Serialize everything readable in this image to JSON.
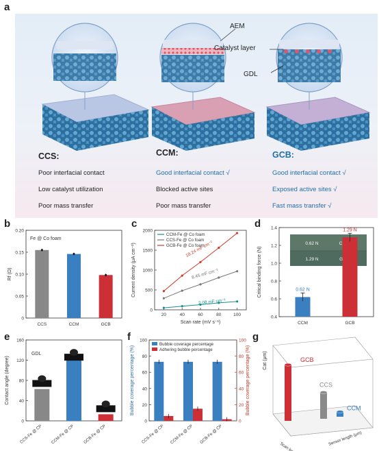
{
  "panel_labels": {
    "a": "a",
    "b": "b",
    "c": "c",
    "d": "d",
    "e": "e",
    "f": "f",
    "g": "g"
  },
  "panel_a": {
    "callouts": {
      "aem": "AEM",
      "catalyst": "Catalyst layer",
      "gdl": "GDL"
    },
    "columns": [
      {
        "title": "CCS:",
        "lines": [
          "Poor interfacial contact",
          "Low catalyst utilization",
          "Poor mass transfer"
        ]
      },
      {
        "title": "CCM:",
        "lines": [
          "Good interfacial contact  √",
          "Blocked active sites",
          "Poor mass transfer"
        ]
      },
      {
        "title": "GCB:",
        "lines": [
          "Good interfacial contact  √",
          "Exposed active sites  √",
          "Fast mass transfer  √"
        ]
      }
    ],
    "colors": {
      "blue_text": "#1f6fa8",
      "gdl": "#3a86b8",
      "catalyst": "#e0687a",
      "membrane": "#c9d6ea"
    }
  },
  "panel_b": {
    "annotation": "Fe @ Co foam",
    "chart_data": {
      "type": "bar",
      "categories": [
        "CCS",
        "CCM",
        "GCB"
      ],
      "values": [
        0.155,
        0.146,
        0.098
      ],
      "colors": [
        "#888888",
        "#3a7fc0",
        "#cc2f35"
      ],
      "ylabel": "Rf (Ω)",
      "ylim": [
        0,
        0.2
      ],
      "yticks": [
        "0",
        "0.05",
        "0.10",
        "0.15",
        "0.20"
      ]
    }
  },
  "panel_c": {
    "chart_data": {
      "type": "line",
      "x": [
        20,
        40,
        60,
        80,
        100
      ],
      "series": [
        {
          "name": "CCM-Fe @ Co foam",
          "values": [
            50,
            90,
            130,
            175,
            210
          ],
          "color": "#1a8f8a",
          "slope_label": "2.08 mF cm⁻²"
        },
        {
          "name": "CCS-Fe @ Co foam",
          "values": [
            290,
            480,
            640,
            810,
            970
          ],
          "color": "#777777",
          "slope_label": "8.45 mF cm⁻²"
        },
        {
          "name": "GCB-Fe @ Co foam",
          "values": [
            470,
            860,
            1200,
            1560,
            1930
          ],
          "color": "#cc3a2a",
          "slope_label": "18.24 mF cm⁻²"
        }
      ],
      "xlabel": "Scan rate (mV s⁻¹)",
      "ylabel": "Current density (μA cm⁻²)",
      "xlim": [
        10,
        110
      ],
      "ylim": [
        0,
        2000
      ],
      "xticks": [
        "20",
        "40",
        "60",
        "80",
        "100"
      ],
      "yticks": [
        "0",
        "500",
        "1000",
        "1500",
        "2000"
      ]
    }
  },
  "panel_d": {
    "inset": {
      "top_value": "0.62 N",
      "top_label": "CCM-Fe",
      "bottom_value": "1.29 N",
      "bottom_label": "GCB-Fe"
    },
    "chart_data": {
      "type": "bar",
      "categories": [
        "CCM",
        "GCB"
      ],
      "values": [
        0.62,
        1.29
      ],
      "data_labels": [
        "0.62 N",
        "1.29 N"
      ],
      "colors": [
        "#3a7fc0",
        "#cc2f35"
      ],
      "ylabel": "Critical binding force (N)",
      "ylim": [
        0.4,
        1.4
      ],
      "yticks": [
        "0.4",
        "0.6",
        "0.8",
        "1.0",
        "1.2",
        "1.4"
      ]
    }
  },
  "panel_e": {
    "annotation": "GDL",
    "chart_data": {
      "type": "bar",
      "categories": [
        "CCS-Fe @ CP",
        "CCM-Fe @ CP",
        "GCB-Fe @ CP"
      ],
      "values": [
        63,
        121,
        13
      ],
      "colors": [
        "#888888",
        "#3a7fc0",
        "#cc2f35"
      ],
      "ylabel": "Contact angle (degree)",
      "ylim": [
        0,
        160
      ],
      "yticks": [
        "0",
        "40",
        "80",
        "120",
        "160"
      ],
      "droplet_levels": [
        78,
        130,
        28
      ]
    }
  },
  "panel_f": {
    "chart_data": {
      "type": "bar",
      "categories": [
        "CCS-Fe @ CP",
        "CCM-Fe @ CP",
        "GCB-Fe @ CP"
      ],
      "series": [
        {
          "name": "Bubble coverage percentage",
          "values": [
            73,
            73,
            73
          ],
          "color": "#3a7fc0",
          "axis": "left"
        },
        {
          "name": "Adhering bubble percentage",
          "values": [
            6,
            15,
            2
          ],
          "color": "#cc2f35",
          "axis": "right"
        }
      ],
      "ylabel_left": "Bubble coverage percentage (%)",
      "ylabel_right": "Bubble coverage percentage (%)",
      "ylim": [
        0,
        100
      ],
      "yticks": [
        "0",
        "20",
        "40",
        "60",
        "80",
        "100"
      ]
    }
  },
  "panel_g": {
    "chart_data": {
      "type": "bar",
      "categories": [
        "GCB",
        "CCS",
        "CCM"
      ],
      "values": [
        18,
        8.5,
        1.6
      ],
      "colors": [
        "#cc2f35",
        "#8a8a8a",
        "#3a7fc0"
      ],
      "zlabel": "Cat (μm)",
      "axis_labels": [
        "Scan length (μm)",
        "Sensor length (μm)"
      ]
    }
  }
}
